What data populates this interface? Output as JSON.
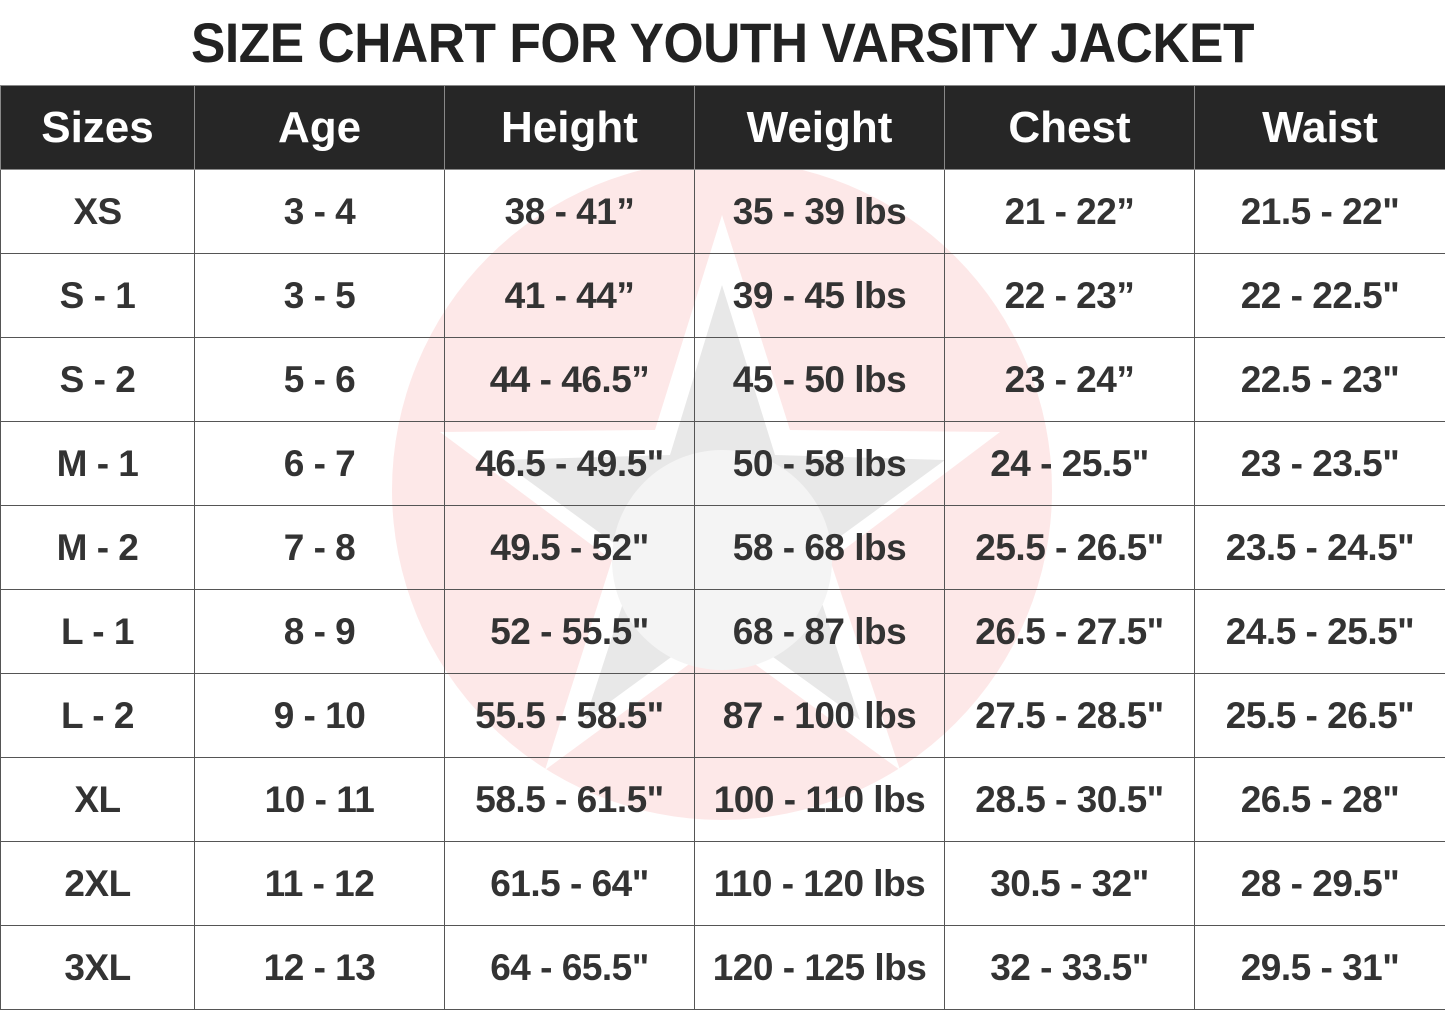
{
  "title": "SIZE CHART FOR YOUTH VARSITY JACKET",
  "columns": [
    "Sizes",
    "Age",
    "Height",
    "Weight",
    "Chest",
    "Waist"
  ],
  "rows": [
    [
      "XS",
      "3 - 4",
      "38 - 41”",
      "35 - 39 lbs",
      "21 - 22”",
      "21.5 - 22\""
    ],
    [
      "S - 1",
      "3 - 5",
      "41 - 44”",
      "39 - 45 lbs",
      "22 - 23”",
      "22 - 22.5\""
    ],
    [
      "S - 2",
      "5 - 6",
      "44 - 46.5”",
      "45 - 50 lbs",
      "23 - 24”",
      "22.5 - 23\""
    ],
    [
      "M - 1",
      "6 - 7",
      "46.5 - 49.5\"",
      "50 - 58 lbs",
      "24 - 25.5\"",
      "23 - 23.5\""
    ],
    [
      "M - 2",
      "7 - 8",
      "49.5 - 52\"",
      "58 - 68 lbs",
      "25.5 - 26.5\"",
      "23.5 - 24.5\""
    ],
    [
      "L - 1",
      "8 - 9",
      "52 - 55.5\"",
      "68 - 87 lbs",
      "26.5 - 27.5\"",
      "24.5 - 25.5\""
    ],
    [
      "L - 2",
      "9 - 10",
      "55.5 - 58.5\"",
      "87 - 100 lbs",
      "27.5 - 28.5\"",
      "25.5 - 26.5\""
    ],
    [
      "XL",
      "10 - 11",
      "58.5 - 61.5\"",
      "100 - 110 lbs",
      "28.5 - 30.5\"",
      "26.5 - 28\""
    ],
    [
      "2XL",
      "11 - 12",
      "61.5 - 64\"",
      "110 - 120 lbs",
      "30.5 - 32\"",
      "28 - 29.5\""
    ],
    [
      "3XL",
      "12 - 13",
      "64 - 65.5\"",
      "120 - 125 lbs",
      "32 - 33.5\"",
      "29.5 - 31\""
    ]
  ],
  "colors": {
    "header_bg": "#262626",
    "header_text": "#ffffff",
    "cell_text": "#333333",
    "watermark_circle": "#fde8e8",
    "watermark_star": "#e6e6e6"
  },
  "watermark": "star-logo-icon"
}
